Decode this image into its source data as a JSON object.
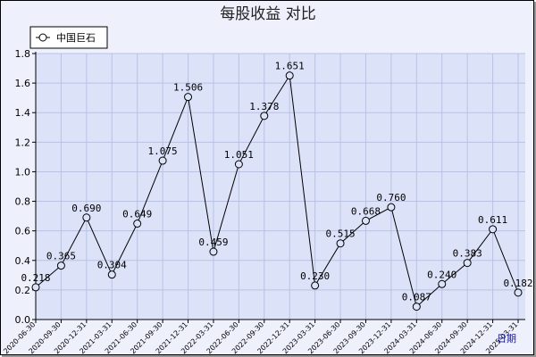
{
  "chart_data": {
    "type": "line",
    "title": "每股收益  对比",
    "xlabel": "日期",
    "ylabel": "",
    "ylim": [
      0,
      1.8
    ],
    "yticks": [
      "0.0",
      "0.2",
      "0.4",
      "0.6",
      "0.8",
      "1.0",
      "1.2",
      "1.4",
      "1.6",
      "1.8"
    ],
    "grid": true,
    "legend_position": "top-left",
    "categories": [
      "2020-06-30",
      "2020-09-30",
      "2020-12-31",
      "2021-03-31",
      "2021-06-30",
      "2021-09-30",
      "2021-12-31",
      "2022-03-31",
      "2022-06-30",
      "2022-09-30",
      "2022-12-31",
      "2023-03-31",
      "2023-06-30",
      "2023-09-30",
      "2023-12-31",
      "2024-03-31",
      "2024-06-30",
      "2024-09-30",
      "2024-12-31",
      "2025-03-31"
    ],
    "series": [
      {
        "name": "中国巨石",
        "values": [
          0.218,
          0.365,
          0.69,
          0.304,
          0.649,
          1.075,
          1.506,
          0.459,
          1.051,
          1.378,
          1.651,
          0.23,
          0.515,
          0.668,
          0.76,
          0.087,
          0.24,
          0.383,
          0.611,
          0.182
        ],
        "labels": [
          "0.218",
          "0.365",
          "0.690",
          "0.304",
          "0.649",
          "1.075",
          "1.506",
          "0.459",
          "1.051",
          "1.378",
          "1.651",
          "0.230",
          "0.515",
          "0.668",
          "0.760",
          "0.087",
          "0.240",
          "0.383",
          "0.611",
          "0.182"
        ],
        "color": "#000000"
      }
    ],
    "colors": {
      "plot_background": "#dce2f8",
      "frame_background": "#eef0fb",
      "grid": "#b9c2e6",
      "unit_label": "#1a1aa8"
    }
  }
}
